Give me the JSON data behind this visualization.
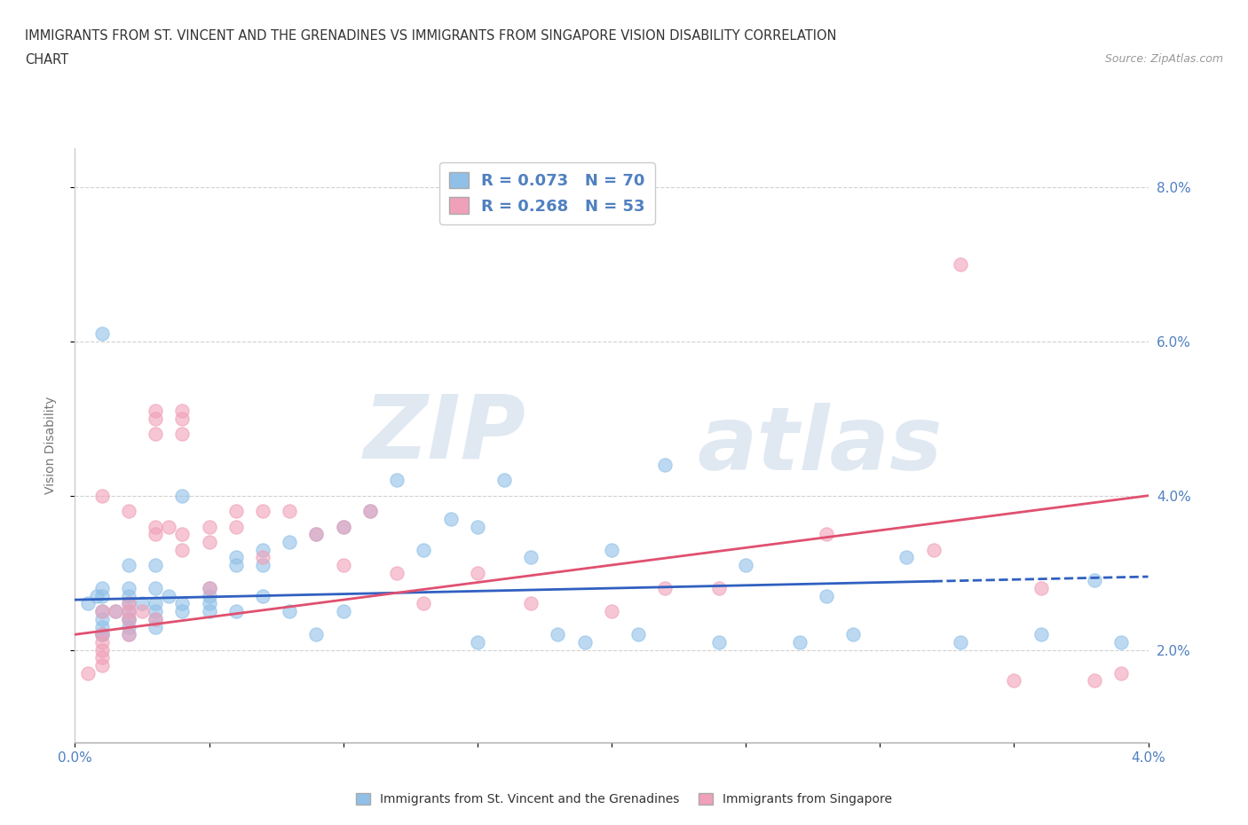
{
  "title_line1": "IMMIGRANTS FROM ST. VINCENT AND THE GRENADINES VS IMMIGRANTS FROM SINGAPORE VISION DISABILITY CORRELATION",
  "title_line2": "CHART",
  "source": "Source: ZipAtlas.com",
  "ylabel": "Vision Disability",
  "y_ticks": [
    0.02,
    0.04,
    0.06,
    0.08
  ],
  "y_tick_labels": [
    "2.0%",
    "4.0%",
    "6.0%",
    "8.0%"
  ],
  "x_min": 0.0,
  "x_max": 0.04,
  "y_min": 0.008,
  "y_max": 0.085,
  "blue_color": "#90C0E8",
  "pink_color": "#F0A0B8",
  "blue_line_color": "#3060C0",
  "pink_line_color": "#E05070",
  "axis_label_color": "#5080C0",
  "R_blue": "0.073",
  "N_blue": "70",
  "R_pink": "0.268",
  "N_pink": "53",
  "blue_scatter_x": [
    0.0005,
    0.0008,
    0.001,
    0.001,
    0.001,
    0.001,
    0.001,
    0.001,
    0.001,
    0.0015,
    0.002,
    0.002,
    0.002,
    0.002,
    0.002,
    0.002,
    0.002,
    0.002,
    0.0025,
    0.003,
    0.003,
    0.003,
    0.003,
    0.003,
    0.0035,
    0.004,
    0.004,
    0.004,
    0.005,
    0.005,
    0.005,
    0.005,
    0.006,
    0.006,
    0.006,
    0.007,
    0.007,
    0.007,
    0.008,
    0.008,
    0.009,
    0.009,
    0.01,
    0.01,
    0.011,
    0.012,
    0.013,
    0.014,
    0.015,
    0.015,
    0.016,
    0.017,
    0.018,
    0.019,
    0.02,
    0.021,
    0.022,
    0.024,
    0.025,
    0.027,
    0.028,
    0.029,
    0.031,
    0.033,
    0.036,
    0.038,
    0.039,
    0.001,
    0.002,
    0.003
  ],
  "blue_scatter_y": [
    0.026,
    0.027,
    0.025,
    0.027,
    0.024,
    0.022,
    0.028,
    0.061,
    0.023,
    0.025,
    0.026,
    0.027,
    0.025,
    0.024,
    0.022,
    0.031,
    0.028,
    0.023,
    0.026,
    0.026,
    0.025,
    0.024,
    0.031,
    0.028,
    0.027,
    0.026,
    0.025,
    0.04,
    0.027,
    0.026,
    0.025,
    0.028,
    0.031,
    0.032,
    0.025,
    0.033,
    0.027,
    0.031,
    0.034,
    0.025,
    0.035,
    0.022,
    0.036,
    0.025,
    0.038,
    0.042,
    0.033,
    0.037,
    0.036,
    0.021,
    0.042,
    0.032,
    0.022,
    0.021,
    0.033,
    0.022,
    0.044,
    0.021,
    0.031,
    0.021,
    0.027,
    0.022,
    0.032,
    0.021,
    0.022,
    0.029,
    0.021,
    0.022,
    0.024,
    0.023
  ],
  "pink_scatter_x": [
    0.0005,
    0.001,
    0.001,
    0.001,
    0.001,
    0.001,
    0.001,
    0.0015,
    0.002,
    0.002,
    0.002,
    0.002,
    0.0025,
    0.003,
    0.003,
    0.003,
    0.003,
    0.003,
    0.0035,
    0.004,
    0.004,
    0.004,
    0.004,
    0.004,
    0.005,
    0.005,
    0.005,
    0.006,
    0.006,
    0.007,
    0.007,
    0.008,
    0.009,
    0.01,
    0.01,
    0.011,
    0.012,
    0.013,
    0.015,
    0.017,
    0.02,
    0.022,
    0.024,
    0.028,
    0.032,
    0.033,
    0.035,
    0.036,
    0.038,
    0.039,
    0.001,
    0.002,
    0.003
  ],
  "pink_scatter_y": [
    0.017,
    0.025,
    0.022,
    0.021,
    0.02,
    0.019,
    0.018,
    0.025,
    0.026,
    0.025,
    0.024,
    0.022,
    0.025,
    0.051,
    0.05,
    0.048,
    0.036,
    0.035,
    0.036,
    0.051,
    0.05,
    0.048,
    0.035,
    0.033,
    0.028,
    0.036,
    0.034,
    0.038,
    0.036,
    0.032,
    0.038,
    0.038,
    0.035,
    0.036,
    0.031,
    0.038,
    0.03,
    0.026,
    0.03,
    0.026,
    0.025,
    0.028,
    0.028,
    0.035,
    0.033,
    0.07,
    0.016,
    0.028,
    0.016,
    0.017,
    0.04,
    0.038,
    0.024
  ],
  "blue_trend_x_start": 0.0,
  "blue_trend_x_end": 0.04,
  "blue_trend_y_start": 0.0265,
  "blue_trend_y_end": 0.0295,
  "pink_trend_x_start": 0.0,
  "pink_trend_x_end": 0.04,
  "pink_trend_y_start": 0.022,
  "pink_trend_y_end": 0.04,
  "watermark_zip": "ZIP",
  "watermark_atlas": "atlas",
  "background_color": "#ffffff",
  "grid_color": "#cccccc"
}
